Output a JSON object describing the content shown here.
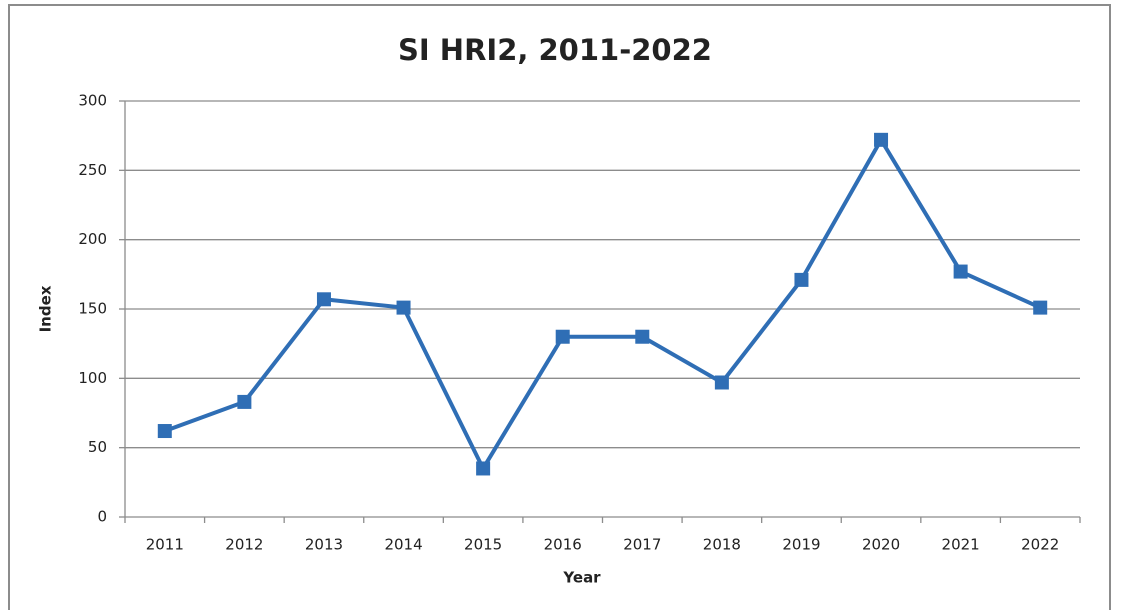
{
  "chart_data": {
    "type": "line",
    "title": "SI HRI2, 2011-2022",
    "x_label": "Year",
    "y_label": "Index",
    "categories": [
      "2011",
      "2012",
      "2013",
      "2014",
      "2015",
      "2016",
      "2017",
      "2018",
      "2019",
      "2020",
      "2021",
      "2022"
    ],
    "series": [
      {
        "name": "SI HRI2",
        "color": "#2f6eb5",
        "values": [
          62,
          83,
          157,
          151,
          35,
          130,
          130,
          97,
          171,
          272,
          177,
          151
        ]
      }
    ],
    "ylim": [
      0,
      300
    ],
    "yticks": [
      0,
      50,
      100,
      150,
      200,
      250,
      300
    ],
    "grid": true,
    "legend": false
  }
}
